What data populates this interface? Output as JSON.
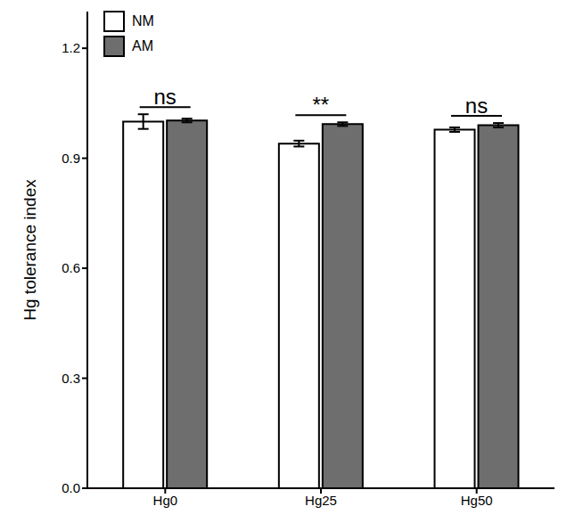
{
  "chart_data": {
    "type": "bar",
    "categories": [
      "Hg0",
      "Hg25",
      "Hg50"
    ],
    "series": [
      {
        "name": "NM",
        "color": "#ffffff",
        "values": [
          1.0,
          0.94,
          0.978
        ],
        "errors": [
          0.02,
          0.008,
          0.006
        ]
      },
      {
        "name": "AM",
        "color": "#6e6e6e",
        "values": [
          1.003,
          0.993,
          0.99
        ],
        "errors": [
          0.005,
          0.005,
          0.006
        ]
      }
    ],
    "y_label": "Hg tolerance index",
    "ylim": [
      0,
      1.3
    ],
    "yticks": [
      {
        "value": 0,
        "label": "0.0"
      },
      0.3,
      0.6,
      0.9,
      1.2
    ],
    "annotations": [
      "ns",
      "**",
      "ns"
    ],
    "legend": "upper left",
    "grid": false
  }
}
